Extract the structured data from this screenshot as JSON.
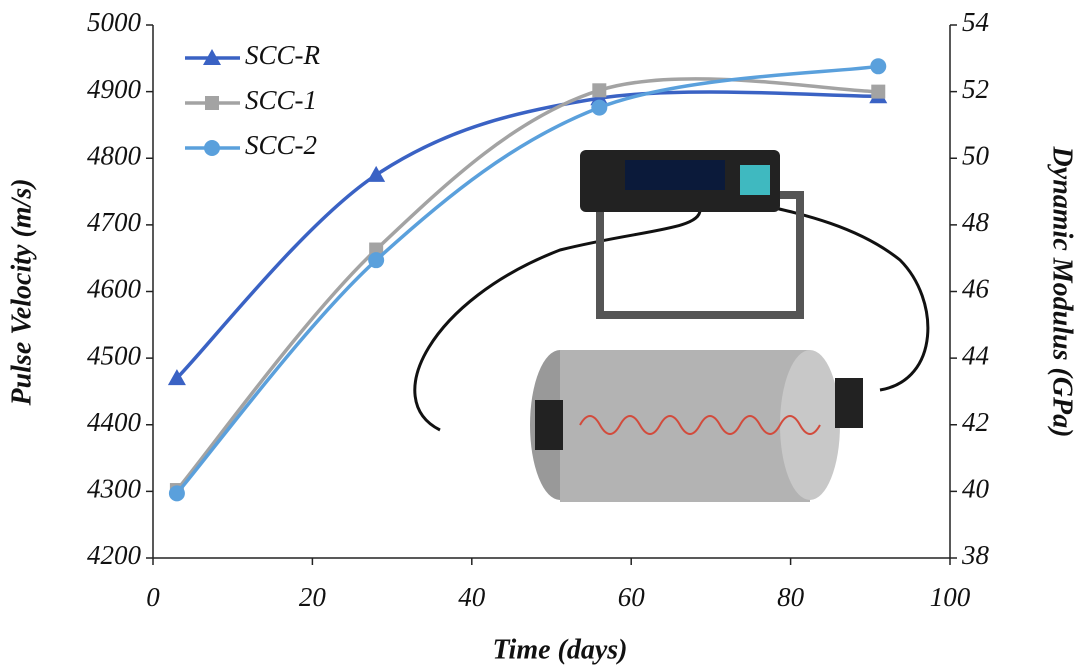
{
  "chart_data": {
    "type": "line",
    "x_label": "Time (days)",
    "y_label": "Pulse Velocity (m/s)",
    "y2_label": "Dynamic Modulus (GPa)",
    "x": [
      3,
      28,
      56,
      91
    ],
    "series": [
      {
        "name": "SCC-R",
        "color": "#3a62c4",
        "marker": "triangle",
        "values": [
          4470,
          4775,
          4890,
          4893
        ]
      },
      {
        "name": "SCC-1",
        "color": "#a3a3a3",
        "marker": "square",
        "values": [
          4302,
          4663,
          4902,
          4900
        ]
      },
      {
        "name": "SCC-2",
        "color": "#5aa0dc",
        "marker": "circle",
        "values": [
          4297,
          4647,
          4876,
          4938
        ]
      }
    ],
    "xlim": [
      0,
      100
    ],
    "xticks": [
      0,
      20,
      40,
      60,
      80,
      100
    ],
    "ylim": [
      4200,
      5000
    ],
    "yticks": [
      4200,
      4300,
      4400,
      4500,
      4600,
      4700,
      4800,
      4900,
      5000
    ],
    "y2lim": [
      38,
      54
    ],
    "y2ticks": [
      38,
      40,
      42,
      44,
      46,
      48,
      50,
      52,
      54
    ],
    "legend": "upper left",
    "grid": false
  }
}
